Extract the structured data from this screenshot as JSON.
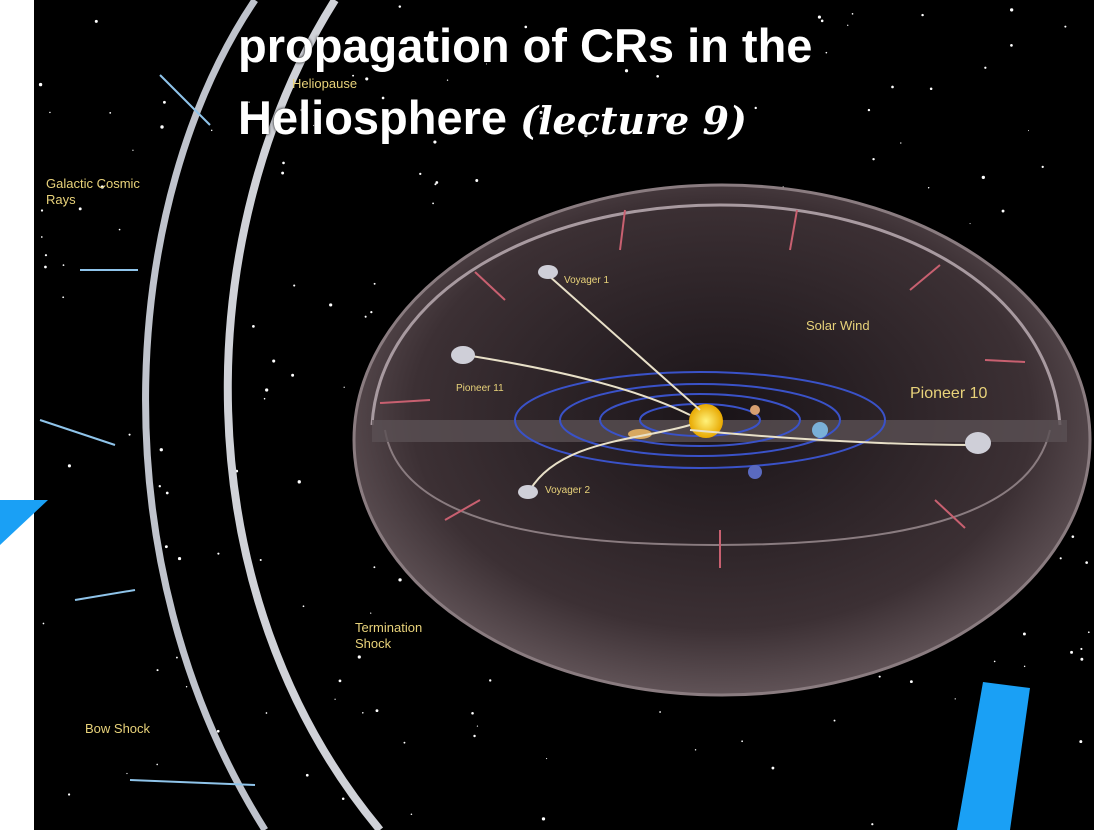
{
  "slide": {
    "title_line1": "propagation of CRs in the",
    "title_line2": "Heliosphere",
    "title_note": "(lecture 9)",
    "labels": {
      "heliopause": "Heliopause",
      "galactic_cosmic_rays": "Galactic Cosmic Rays",
      "voyager1": "Voyager 1",
      "pioneer11": "Pioneer 11",
      "solar_wind": "Solar Wind",
      "pioneer10": "Pioneer 10",
      "voyager2": "Voyager 2",
      "termination_shock": "Termination Shock",
      "bow_shock": "Bow Shock"
    }
  }
}
